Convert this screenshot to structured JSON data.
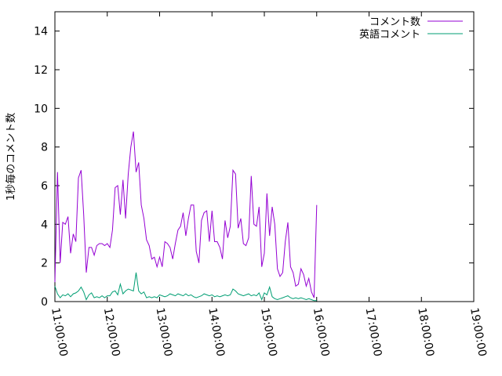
{
  "chart_data": {
    "type": "line",
    "ylabel": "1秒毎のコメント数",
    "xlabel": "",
    "title": "",
    "ylim": [
      0,
      15
    ],
    "yticks": [
      0,
      2,
      4,
      6,
      8,
      10,
      12,
      14
    ],
    "xlim_hours": [
      11,
      19
    ],
    "xticks": [
      "11:00:00",
      "12:00:00",
      "13:00:00",
      "14:00:00",
      "15:00:00",
      "16:00:00",
      "17:00:00",
      "18:00:00",
      "19:00:00"
    ],
    "grid": false,
    "legend_position": "top-right",
    "series": [
      {
        "name": "コメント数",
        "color": "#9400d3",
        "points": [
          [
            "11:00:00",
            1.0
          ],
          [
            "11:03:00",
            6.7
          ],
          [
            "11:06:00",
            2.0
          ],
          [
            "11:09:00",
            4.1
          ],
          [
            "11:12:00",
            4.0
          ],
          [
            "11:15:00",
            4.4
          ],
          [
            "11:18:00",
            2.5
          ],
          [
            "11:21:00",
            3.5
          ],
          [
            "11:24:00",
            3.1
          ],
          [
            "11:27:00",
            6.4
          ],
          [
            "11:30:00",
            6.8
          ],
          [
            "11:33:00",
            4.5
          ],
          [
            "11:36:00",
            1.5
          ],
          [
            "11:39:00",
            2.8
          ],
          [
            "11:42:00",
            2.8
          ],
          [
            "11:45:00",
            2.4
          ],
          [
            "11:48:00",
            2.9
          ],
          [
            "11:51:00",
            3.0
          ],
          [
            "11:54:00",
            3.0
          ],
          [
            "11:57:00",
            2.9
          ],
          [
            "12:00:00",
            3.0
          ],
          [
            "12:03:00",
            2.8
          ],
          [
            "12:06:00",
            3.7
          ],
          [
            "12:09:00",
            5.9
          ],
          [
            "12:12:00",
            6.0
          ],
          [
            "12:15:00",
            4.5
          ],
          [
            "12:18:00",
            6.3
          ],
          [
            "12:21:00",
            4.3
          ],
          [
            "12:24:00",
            6.6
          ],
          [
            "12:27:00",
            8.0
          ],
          [
            "12:30:00",
            8.8
          ],
          [
            "12:33:00",
            6.7
          ],
          [
            "12:36:00",
            7.2
          ],
          [
            "12:39:00",
            5.0
          ],
          [
            "12:42:00",
            4.3
          ],
          [
            "12:45:00",
            3.2
          ],
          [
            "12:48:00",
            2.9
          ],
          [
            "12:51:00",
            2.2
          ],
          [
            "12:54:00",
            2.3
          ],
          [
            "12:57:00",
            1.8
          ],
          [
            "13:00:00",
            2.3
          ],
          [
            "13:03:00",
            1.8
          ],
          [
            "13:06:00",
            3.1
          ],
          [
            "13:09:00",
            3.0
          ],
          [
            "13:12:00",
            2.8
          ],
          [
            "13:15:00",
            2.2
          ],
          [
            "13:18:00",
            3.0
          ],
          [
            "13:21:00",
            3.7
          ],
          [
            "13:24:00",
            3.9
          ],
          [
            "13:27:00",
            4.6
          ],
          [
            "13:30:00",
            3.4
          ],
          [
            "13:33:00",
            4.3
          ],
          [
            "13:36:00",
            5.0
          ],
          [
            "13:39:00",
            5.0
          ],
          [
            "13:42:00",
            2.6
          ],
          [
            "13:45:00",
            2.0
          ],
          [
            "13:48:00",
            4.2
          ],
          [
            "13:51:00",
            4.6
          ],
          [
            "13:54:00",
            4.7
          ],
          [
            "13:57:00",
            3.1
          ],
          [
            "14:00:00",
            4.7
          ],
          [
            "14:03:00",
            3.1
          ],
          [
            "14:06:00",
            3.1
          ],
          [
            "14:09:00",
            2.8
          ],
          [
            "14:12:00",
            2.2
          ],
          [
            "14:15:00",
            4.2
          ],
          [
            "14:18:00",
            3.3
          ],
          [
            "14:21:00",
            3.9
          ],
          [
            "14:24:00",
            6.8
          ],
          [
            "14:27:00",
            6.6
          ],
          [
            "14:30:00",
            3.8
          ],
          [
            "14:33:00",
            4.3
          ],
          [
            "14:36:00",
            3.0
          ],
          [
            "14:39:00",
            2.9
          ],
          [
            "14:42:00",
            3.3
          ],
          [
            "14:45:00",
            6.5
          ],
          [
            "14:48:00",
            4.0
          ],
          [
            "14:51:00",
            3.9
          ],
          [
            "14:54:00",
            4.9
          ],
          [
            "14:57:00",
            1.8
          ],
          [
            "15:00:00",
            2.5
          ],
          [
            "15:03:00",
            5.6
          ],
          [
            "15:06:00",
            3.4
          ],
          [
            "15:09:00",
            4.9
          ],
          [
            "15:12:00",
            4.0
          ],
          [
            "15:15:00",
            1.7
          ],
          [
            "15:18:00",
            1.3
          ],
          [
            "15:21:00",
            1.5
          ],
          [
            "15:24:00",
            3.1
          ],
          [
            "15:27:00",
            4.1
          ],
          [
            "15:30:00",
            1.8
          ],
          [
            "15:33:00",
            1.5
          ],
          [
            "15:36:00",
            0.8
          ],
          [
            "15:39:00",
            0.9
          ],
          [
            "15:42:00",
            1.7
          ],
          [
            "15:45:00",
            1.4
          ],
          [
            "15:48:00",
            0.8
          ],
          [
            "15:51:00",
            1.2
          ],
          [
            "15:54:00",
            0.5
          ],
          [
            "15:57:00",
            0.2
          ],
          [
            "16:00:00",
            5.0
          ]
        ]
      },
      {
        "name": "英語コメント",
        "color": "#009e73",
        "points": [
          [
            "11:00:00",
            0.8
          ],
          [
            "11:03:00",
            0.4
          ],
          [
            "11:06:00",
            0.2
          ],
          [
            "11:09:00",
            0.35
          ],
          [
            "11:12:00",
            0.3
          ],
          [
            "11:15:00",
            0.4
          ],
          [
            "11:18:00",
            0.25
          ],
          [
            "11:21:00",
            0.4
          ],
          [
            "11:24:00",
            0.45
          ],
          [
            "11:27:00",
            0.55
          ],
          [
            "11:30:00",
            0.75
          ],
          [
            "11:33:00",
            0.5
          ],
          [
            "11:36:00",
            0.1
          ],
          [
            "11:39:00",
            0.35
          ],
          [
            "11:42:00",
            0.45
          ],
          [
            "11:45:00",
            0.2
          ],
          [
            "11:48:00",
            0.25
          ],
          [
            "11:51:00",
            0.2
          ],
          [
            "11:54:00",
            0.3
          ],
          [
            "11:57:00",
            0.2
          ],
          [
            "12:00:00",
            0.3
          ],
          [
            "12:03:00",
            0.3
          ],
          [
            "12:06:00",
            0.5
          ],
          [
            "12:09:00",
            0.55
          ],
          [
            "12:12:00",
            0.35
          ],
          [
            "12:15:00",
            0.9
          ],
          [
            "12:18:00",
            0.4
          ],
          [
            "12:21:00",
            0.55
          ],
          [
            "12:24:00",
            0.65
          ],
          [
            "12:27:00",
            0.6
          ],
          [
            "12:30:00",
            0.55
          ],
          [
            "12:33:00",
            1.5
          ],
          [
            "12:36:00",
            0.55
          ],
          [
            "12:39:00",
            0.4
          ],
          [
            "12:42:00",
            0.5
          ],
          [
            "12:45:00",
            0.2
          ],
          [
            "12:48:00",
            0.25
          ],
          [
            "12:51:00",
            0.2
          ],
          [
            "12:54:00",
            0.25
          ],
          [
            "12:57:00",
            0.2
          ],
          [
            "13:00:00",
            0.35
          ],
          [
            "13:03:00",
            0.3
          ],
          [
            "13:06:00",
            0.25
          ],
          [
            "13:09:00",
            0.3
          ],
          [
            "13:12:00",
            0.4
          ],
          [
            "13:15:00",
            0.35
          ],
          [
            "13:18:00",
            0.3
          ],
          [
            "13:21:00",
            0.4
          ],
          [
            "13:24:00",
            0.35
          ],
          [
            "13:27:00",
            0.3
          ],
          [
            "13:30:00",
            0.4
          ],
          [
            "13:33:00",
            0.3
          ],
          [
            "13:36:00",
            0.35
          ],
          [
            "13:39:00",
            0.25
          ],
          [
            "13:42:00",
            0.2
          ],
          [
            "13:45:00",
            0.25
          ],
          [
            "13:48:00",
            0.3
          ],
          [
            "13:51:00",
            0.4
          ],
          [
            "13:54:00",
            0.35
          ],
          [
            "13:57:00",
            0.3
          ],
          [
            "14:00:00",
            0.35
          ],
          [
            "14:03:00",
            0.25
          ],
          [
            "14:06:00",
            0.3
          ],
          [
            "14:09:00",
            0.25
          ],
          [
            "14:12:00",
            0.3
          ],
          [
            "14:15:00",
            0.35
          ],
          [
            "14:18:00",
            0.3
          ],
          [
            "14:21:00",
            0.35
          ],
          [
            "14:24:00",
            0.65
          ],
          [
            "14:27:00",
            0.55
          ],
          [
            "14:30:00",
            0.4
          ],
          [
            "14:33:00",
            0.35
          ],
          [
            "14:36:00",
            0.3
          ],
          [
            "14:39:00",
            0.35
          ],
          [
            "14:42:00",
            0.4
          ],
          [
            "14:45:00",
            0.3
          ],
          [
            "14:48:00",
            0.35
          ],
          [
            "14:51:00",
            0.3
          ],
          [
            "14:54:00",
            0.45
          ],
          [
            "14:57:00",
            0.1
          ],
          [
            "15:00:00",
            0.45
          ],
          [
            "15:03:00",
            0.35
          ],
          [
            "15:06:00",
            0.75
          ],
          [
            "15:09:00",
            0.25
          ],
          [
            "15:12:00",
            0.15
          ],
          [
            "15:15:00",
            0.1
          ],
          [
            "15:18:00",
            0.15
          ],
          [
            "15:21:00",
            0.2
          ],
          [
            "15:24:00",
            0.25
          ],
          [
            "15:27:00",
            0.3
          ],
          [
            "15:30:00",
            0.2
          ],
          [
            "15:33:00",
            0.15
          ],
          [
            "15:36:00",
            0.2
          ],
          [
            "15:39:00",
            0.15
          ],
          [
            "15:42:00",
            0.2
          ],
          [
            "15:45:00",
            0.15
          ],
          [
            "15:48:00",
            0.1
          ],
          [
            "15:51:00",
            0.15
          ],
          [
            "15:54:00",
            0.1
          ],
          [
            "15:57:00",
            0.05
          ],
          [
            "16:00:00",
            0.05
          ]
        ]
      }
    ]
  }
}
